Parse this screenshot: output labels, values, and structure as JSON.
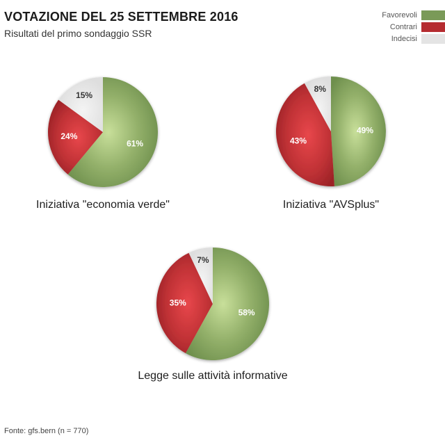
{
  "header": {
    "title": "VOTAZIONE DEL 25 SETTEMBRE 2016",
    "subtitle": "Risultati del primo sondaggio SSR"
  },
  "legend": [
    {
      "label": "Favorevoli",
      "color": "#7a9a58"
    },
    {
      "label": "Contrari",
      "color": "#b52c30"
    },
    {
      "label": "Indecisi",
      "color": "#e4e4e4"
    }
  ],
  "chart_data": [
    {
      "type": "pie",
      "title": "Iniziativa \"economia verde\"",
      "categories": [
        "Favorevoli",
        "Contrari",
        "Indecisi"
      ],
      "values": [
        61,
        24,
        15
      ],
      "value_labels": [
        "61%",
        "24%",
        "15%"
      ]
    },
    {
      "type": "pie",
      "title": "Iniziativa \"AVSplus\"",
      "categories": [
        "Favorevoli",
        "Contrari",
        "Indecisi"
      ],
      "values": [
        49,
        43,
        8
      ],
      "value_labels": [
        "49%",
        "43%",
        "8%"
      ]
    },
    {
      "type": "pie",
      "title": "Legge sulle attività informative",
      "categories": [
        "Favorevoli",
        "Contrari",
        "Indecisi"
      ],
      "values": [
        58,
        35,
        7
      ],
      "value_labels": [
        "58%",
        "35%",
        "7%"
      ]
    }
  ],
  "footer": {
    "source": "Fonte: gfs.bern (n = 770)"
  }
}
